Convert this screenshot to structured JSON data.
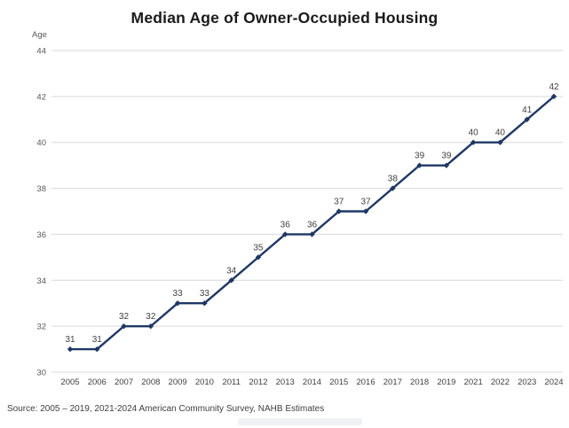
{
  "title": "Median Age of Owner-Occupied Housing",
  "source_note": "Source: 2005 – 2019, 2021-2024 American Community Survey, NAHB Estimates",
  "chart_data": {
    "type": "line",
    "title": "Median Age of Owner-Occupied Housing",
    "xlabel": "",
    "ylabel": "Age",
    "categories": [
      "2005",
      "2006",
      "2007",
      "2008",
      "2009",
      "2010",
      "2011",
      "2012",
      "2013",
      "2014",
      "2015",
      "2016",
      "2017",
      "2018",
      "2019",
      "2021",
      "2022",
      "2023",
      "2024"
    ],
    "values": [
      31,
      31,
      32,
      32,
      33,
      33,
      34,
      35,
      36,
      36,
      37,
      37,
      38,
      39,
      39,
      40,
      40,
      41,
      42
    ],
    "ylim": [
      30,
      44
    ],
    "ytick_step": 2,
    "grid": true,
    "legend": "none",
    "data_labels": true,
    "colors": {
      "line": "#1f3864",
      "marker": "#1f3864",
      "gridline": "#d9d9d9",
      "tick_label": "#595959",
      "x_tick_label": "#404040",
      "data_label": "#404040",
      "title": "#1a1a1a"
    }
  }
}
